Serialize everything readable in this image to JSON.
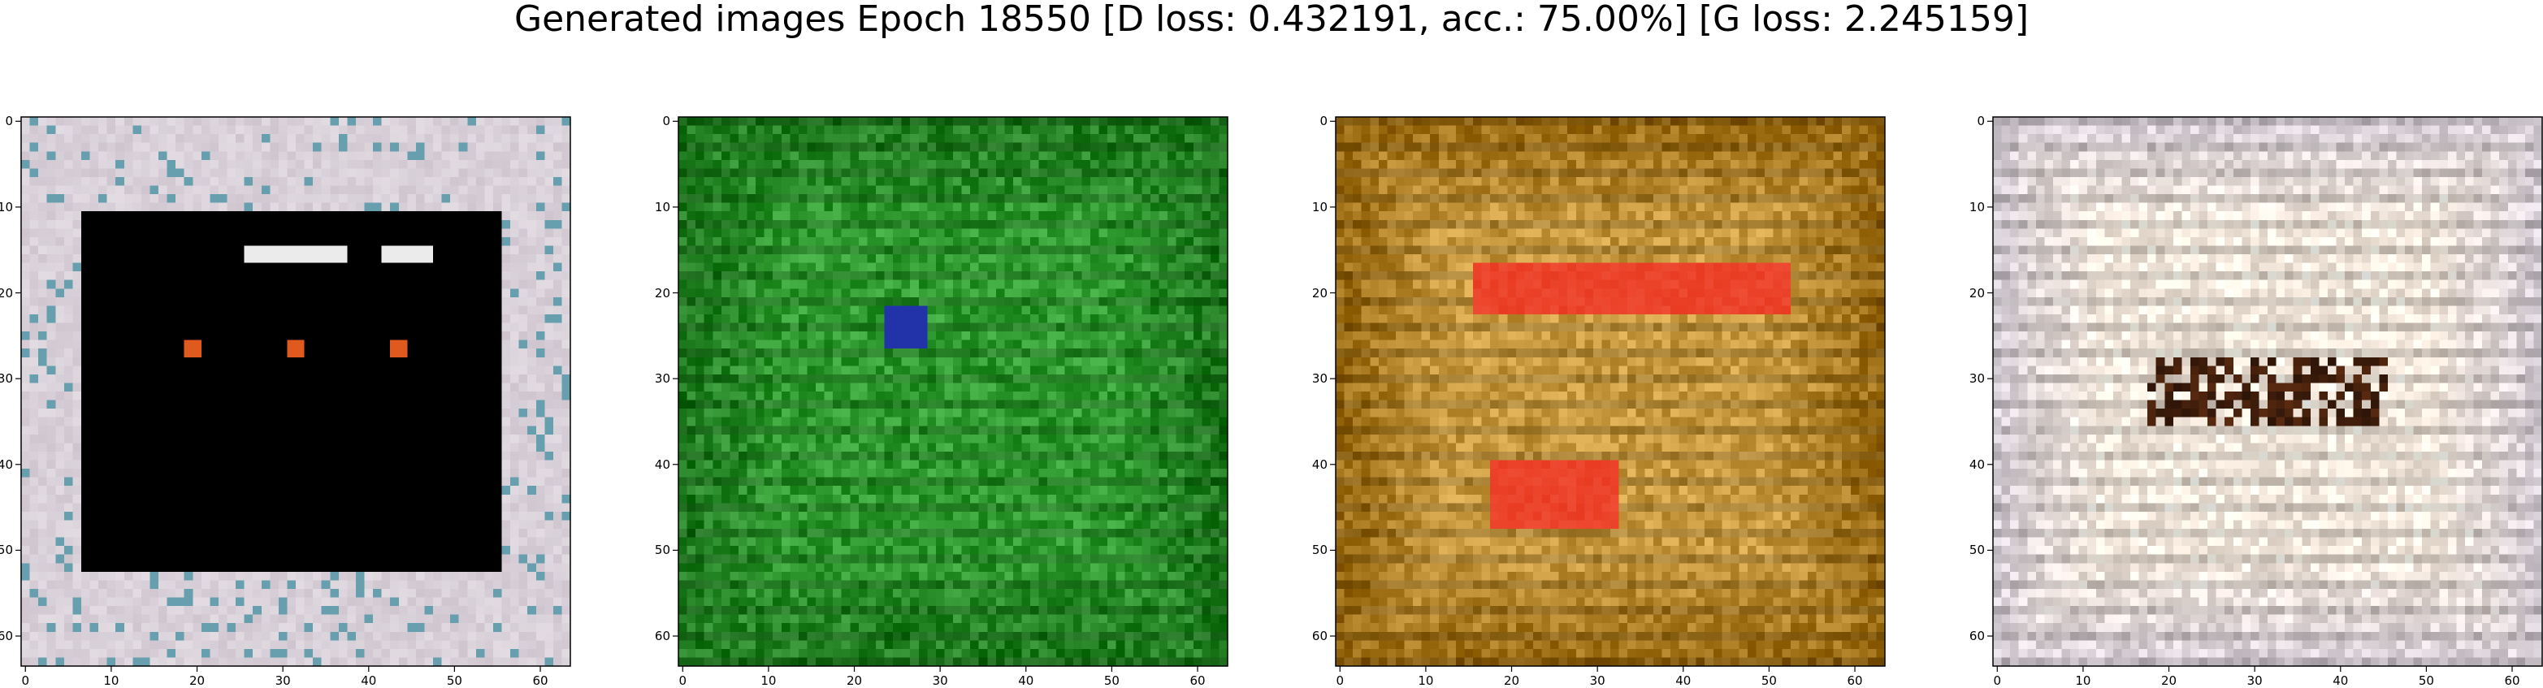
{
  "figure": {
    "title": "Generated images Epoch 18550 [D loss: 0.432191, acc.: 75.00%] [G loss: 2.245159]"
  },
  "chart_data": [
    {
      "type": "heatmap",
      "description_of_content": "generated image 1",
      "xlim": [
        -0.5,
        63.5
      ],
      "ylim": [
        63.5,
        -0.5
      ],
      "xticks": [
        "0",
        "10",
        "20",
        "30",
        "40",
        "50",
        "60"
      ],
      "yticks": [
        "0",
        "10",
        "20",
        "30",
        "40",
        "50",
        "60"
      ],
      "palette": {
        "border": "#cfc5cf",
        "center": "#000000",
        "accent": "#e05a20"
      }
    },
    {
      "type": "heatmap",
      "xlim": [
        -0.5,
        63.5
      ],
      "ylim": [
        63.5,
        -0.5
      ],
      "xticks": [
        "0",
        "10",
        "20",
        "30",
        "40",
        "50",
        "60"
      ],
      "yticks": [
        "0",
        "10",
        "20",
        "30",
        "40",
        "50",
        "60"
      ],
      "palette": {
        "border": "#1f7a1f",
        "center": "#2f9a2f",
        "accent": "#2233aa"
      }
    },
    {
      "type": "heatmap",
      "xlim": [
        -0.5,
        63.5
      ],
      "ylim": [
        63.5,
        -0.5
      ],
      "xticks": [
        "0",
        "10",
        "20",
        "30",
        "40",
        "50",
        "60"
      ],
      "yticks": [
        "0",
        "10",
        "20",
        "30",
        "40",
        "50",
        "60"
      ],
      "palette": {
        "border": "#9a6a10",
        "center": "#c99a40",
        "accent": "#e83a20"
      }
    },
    {
      "type": "heatmap",
      "xlim": [
        -0.5,
        63.5
      ],
      "ylim": [
        63.5,
        -0.5
      ],
      "xticks": [
        "0",
        "10",
        "20",
        "30",
        "40",
        "50",
        "60"
      ],
      "yticks": [
        "0",
        "10",
        "20",
        "30",
        "40",
        "50",
        "60"
      ],
      "palette": {
        "border": "#d8d0d8",
        "center": "#f4e8dc",
        "accent": "#5a2a10"
      }
    }
  ]
}
